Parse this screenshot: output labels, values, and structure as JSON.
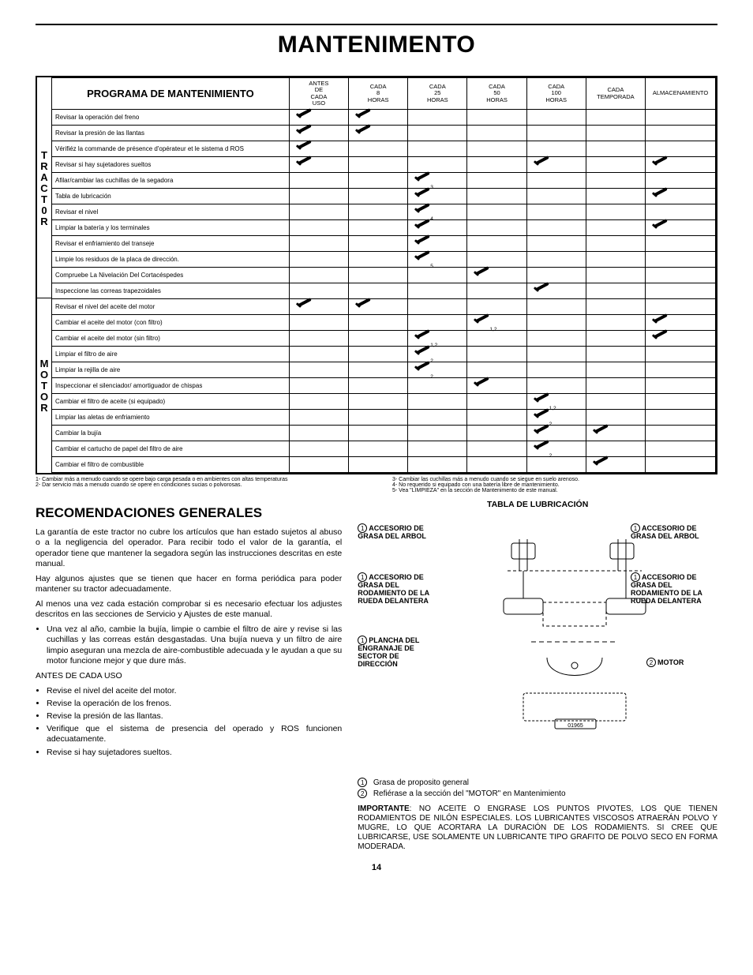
{
  "title": "MANTENIMENTO",
  "table": {
    "heading": "PROGRAMA DE MANTENIMIENTO",
    "columns": [
      "ANTES DE CADA USO",
      "CADA 8 HORAS",
      "CADA 25 HORAS",
      "CADA 50 HORAS",
      "CADA 100 HORAS",
      "CADA TEMPORADA",
      "ALMACENAMIENTO"
    ],
    "side1": "TRACT0R",
    "side2": "MOTOR",
    "rows1": [
      {
        "t": "Revisar la operación del freno",
        "c": [
          1,
          1,
          0,
          0,
          0,
          0,
          0
        ]
      },
      {
        "t": "Revisar la presión de las llantas",
        "c": [
          1,
          1,
          0,
          0,
          0,
          0,
          0
        ]
      },
      {
        "t": "Vérifiéz la commande de présence d'opérateur et le sistema d ROS",
        "c": [
          1,
          0,
          0,
          0,
          0,
          0,
          0
        ]
      },
      {
        "t": "Revisar si hay sujetadores sueltos",
        "c": [
          1,
          0,
          0,
          0,
          1,
          0,
          1
        ]
      },
      {
        "t": "Afilar/cambiar las cuchillas de la segadora",
        "c": [
          0,
          0,
          1,
          0,
          0,
          0,
          0
        ],
        "s": [
          "",
          "",
          "3",
          "",
          "",
          "",
          ""
        ]
      },
      {
        "t": "Tabla de lubricación",
        "c": [
          0,
          0,
          1,
          0,
          0,
          0,
          1
        ]
      },
      {
        "t": "Revisar el nivel",
        "c": [
          0,
          0,
          1,
          0,
          0,
          0,
          0
        ],
        "s": [
          "",
          "",
          "4",
          "",
          "",
          "",
          ""
        ]
      },
      {
        "t": "Limpiar la batería y los terminales",
        "c": [
          0,
          0,
          1,
          0,
          0,
          0,
          1
        ]
      },
      {
        "t": "Revisar el enfriamiento del transeje",
        "c": [
          0,
          0,
          1,
          0,
          0,
          0,
          0
        ]
      },
      {
        "t": "Limpie los residuos de la placa de dirección.",
        "c": [
          0,
          0,
          1,
          0,
          0,
          0,
          0
        ],
        "s": [
          "",
          "",
          "5",
          "",
          "",
          "",
          ""
        ]
      },
      {
        "t": "Compruebe La Nivelación Del Cortacéspedes",
        "c": [
          0,
          0,
          0,
          1,
          0,
          0,
          0
        ]
      },
      {
        "t": "Inspeccione las correas trapezoidales",
        "c": [
          0,
          0,
          0,
          0,
          1,
          0,
          0
        ]
      }
    ],
    "rows2": [
      {
        "t": "Revisar el nivel del aceite del motor",
        "c": [
          1,
          1,
          0,
          0,
          0,
          0,
          0
        ]
      },
      {
        "t": "Cambiar el aceite del motor (con filtro)",
        "c": [
          0,
          0,
          0,
          1,
          0,
          0,
          1
        ],
        "s": [
          "",
          "",
          "",
          "1,2",
          "",
          "",
          ""
        ]
      },
      {
        "t": "Cambiar el aceite del motor (sin filtro)",
        "c": [
          0,
          0,
          1,
          0,
          0,
          0,
          1
        ],
        "s": [
          "",
          "",
          "1,2",
          "",
          "",
          "",
          ""
        ]
      },
      {
        "t": "Limpiar el filtro de aire",
        "c": [
          0,
          0,
          1,
          0,
          0,
          0,
          0
        ],
        "s": [
          "",
          "",
          "2",
          "",
          "",
          "",
          ""
        ]
      },
      {
        "t": "Limpiar la rejilla de aire",
        "c": [
          0,
          0,
          1,
          0,
          0,
          0,
          0
        ],
        "s": [
          "",
          "",
          "2",
          "",
          "",
          "",
          ""
        ]
      },
      {
        "t": "Inspeccionar el silenciador/ amortiguador de chispas",
        "c": [
          0,
          0,
          0,
          1,
          0,
          0,
          0
        ]
      },
      {
        "t": "Cambiar el filtro de aceite (si equipado)",
        "c": [
          0,
          0,
          0,
          0,
          1,
          0,
          0
        ],
        "s": [
          "",
          "",
          "",
          "",
          "1,2",
          "",
          ""
        ]
      },
      {
        "t": "Limpiar las aletas de enfriamiento",
        "c": [
          0,
          0,
          0,
          0,
          1,
          0,
          0
        ],
        "s": [
          "",
          "",
          "",
          "",
          "2",
          "",
          ""
        ]
      },
      {
        "t": "Cambiar la bujía",
        "c": [
          0,
          0,
          0,
          0,
          1,
          1,
          0
        ]
      },
      {
        "t": "Cambiar el cartucho de papel del filtro de aire",
        "c": [
          0,
          0,
          0,
          0,
          1,
          0,
          0
        ],
        "s": [
          "",
          "",
          "",
          "",
          "2",
          "",
          ""
        ]
      },
      {
        "t": "Cambiar el filtro de combustible",
        "c": [
          0,
          0,
          0,
          0,
          0,
          1,
          0
        ]
      }
    ]
  },
  "notes": {
    "l1": "1- Cambiar más a menudo cuando se opere bajo carga pesada o en ambientes con altas temperaturas",
    "l2": "2- Dar servicio más a menudo cuando se opere en condiciones sucias o polvorosas.",
    "r1": "3- Cambiar las cuchillas más a menudo cuando se siegue en suelo arenoso.",
    "r2": "4- No requerido si equipado con una batería libre de mantenimiento.",
    "r3": "5- Vea \"LIMPIEZA\" en la sección de Mantenimento de este manual."
  },
  "section_title": "RECOMENDACIONES GENERALES",
  "body": {
    "p1": "La garantía de este tractor no cubre los artículos que han estado sujetos al abuso o a la negligencia del operador. Para recibir todo el valor de la garantía, el operador tiene que mantener la segadora según las instrucciones descritas en este manual.",
    "p2": "Hay algunos ajustes que se tienen que hacer en forma periódica para poder mantener su tractor adecuadamente.",
    "p3": "Al menos una vez cada estación comprobar si es necesario efectuar los adjustes descritos en las secciones de Servicio y Ajustes de este manual.",
    "b1": "Una vez al año, cambie la bujía, limpie o cambie el filtro de aire y revise si las cuchillas y las correas están desgastadas. Una bujía nueva y un filtro de aire limpio aseguran una mezcla de aire-combustible adecuada y le ayudan a que su motor funcione mejor y que dure más.",
    "h1": "ANTES DE CADA USO",
    "u1": "Revise el nivel del aceite del motor.",
    "u2": "Revise la operación de los frenos.",
    "u3": "Revise la presión de las llantas.",
    "u4": "Verifique que el sistema de presencia del operado y ROS funcionen adecuatamente.",
    "u5": "Revise si hay sujetadores sueltos."
  },
  "right": {
    "title": "TABLA DE LUBRICACIÓN",
    "lab1": "ACCESORIO DE GRASA DEL ARBOL",
    "lab2": "ACCESORIO DE GRASA DEL ARBOL",
    "lab3": "ACCESORIO DE GRASA DEL RODAMIENTO DE LA RUEDA DELANTERA",
    "lab4": "ACCESORIO DE GRASA DEL RODAMIENTO DE LA RUEDA DELANTERA",
    "lab5": "PLANCHA DEL ENGRANAJE DE SECTOR DE DIRECCIÓN",
    "lab6": "MOTOR",
    "leg1": "Grasa de proposito general",
    "leg2": "Refiérase a la sección del \"MOTOR\" en Mantenimiento",
    "imp_b": "IMPORTANTE",
    "imp": ": NO ACEITE O ENGRASE LOS PUNTOS PIVOTES, LOS QUE TIENEN RODAMIENTOS DE NILÓN ESPECIALES. LOS LUBRICANTES VISCOSOS ATRAERÁN POLVO Y MUGRE, LO QUE ACORTARA LA DURACIÓN DE LOS RODAMIENTS. SI CREE QUE LUBRICARSE, USE SOLAMENTE UN LUBRICANTE TIPO GRAFITO DE POLVO SECO EN FORMA MODERADA.",
    "diag_num": "01965"
  },
  "page": "14"
}
